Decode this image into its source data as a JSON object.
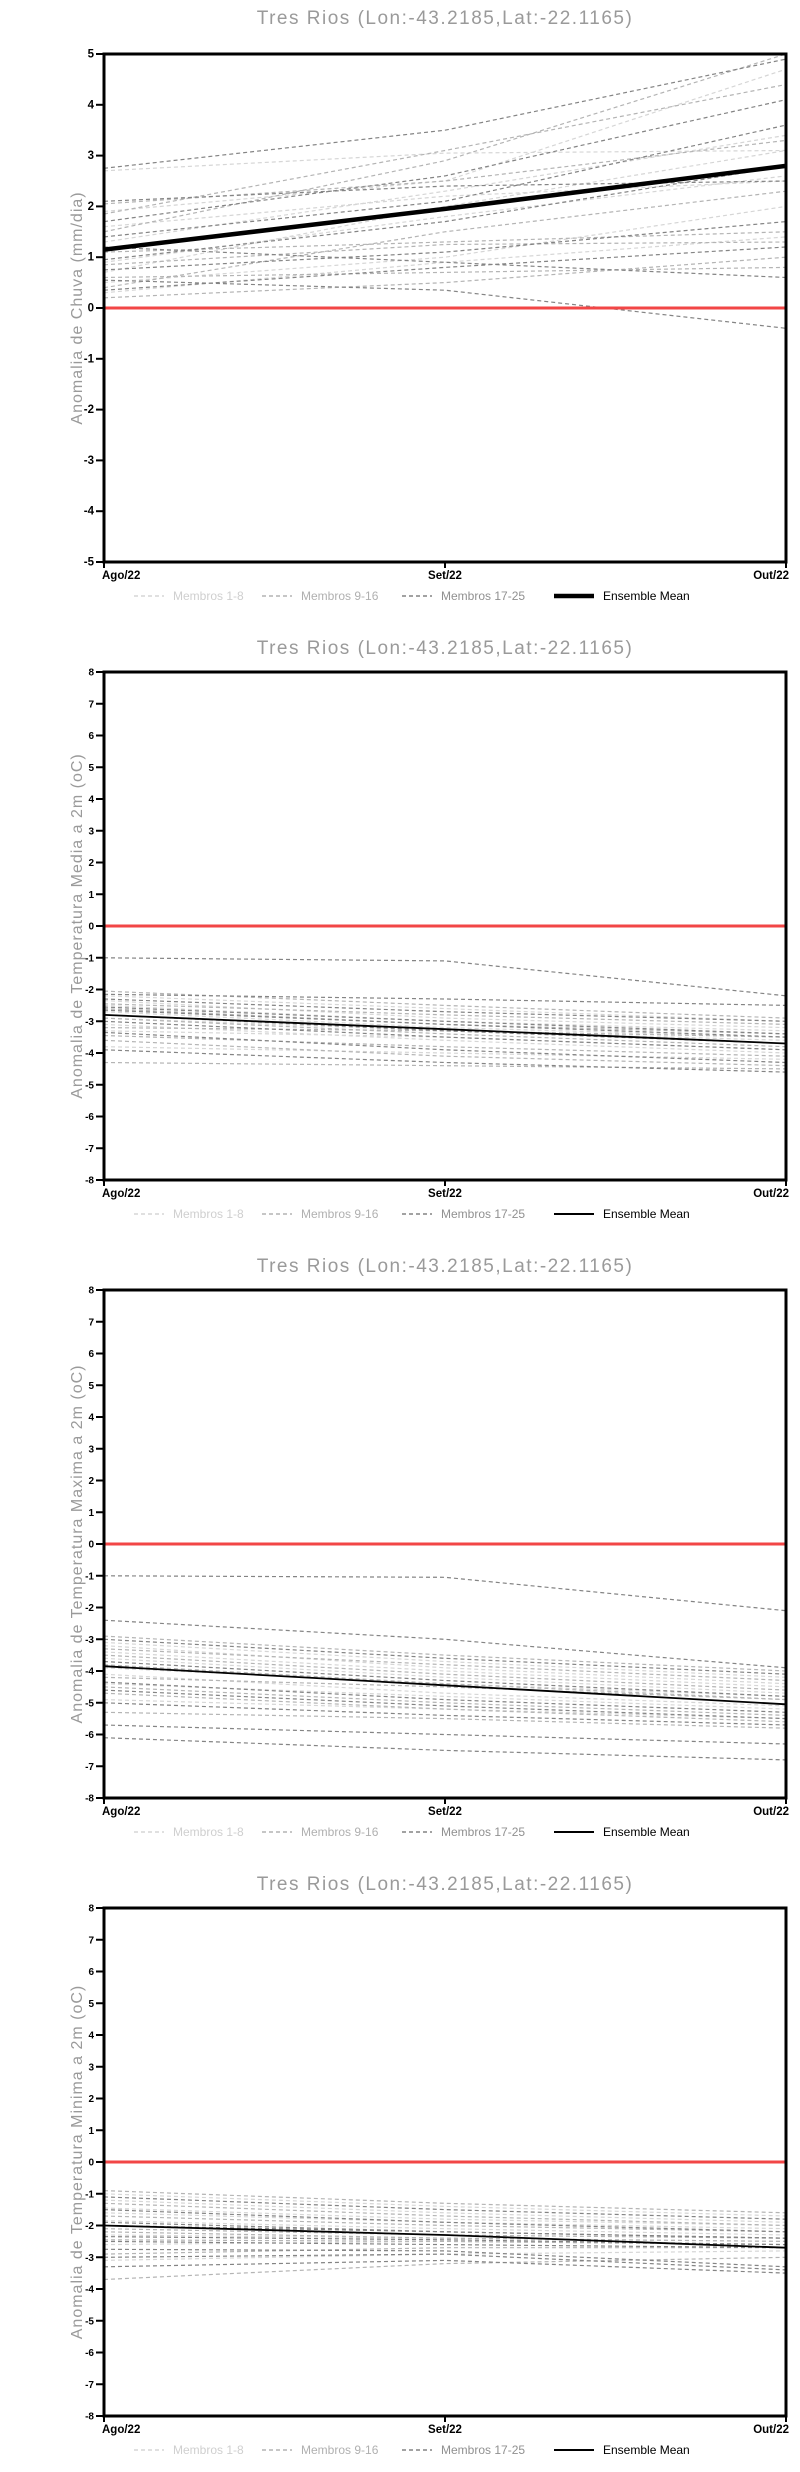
{
  "colors": {
    "background": "#ffffff",
    "axis": "#000000",
    "title_gray": "#9a9a9a",
    "zero_line_red": "#f24646",
    "ensemble_mean": "#000000",
    "members_1_8": "#d6d6d6",
    "members_9_16": "#b4b4b4",
    "members_17_25": "#848484"
  },
  "chart_data": [
    {
      "type": "line",
      "title": "Tres Rios (Lon:-43.2185,Lat:-22.1165)",
      "ylabel": "Anomalia de Chuva (mm/dia)",
      "x_labels": [
        "Ago/22",
        "Set/22",
        "Out/22"
      ],
      "ylim": [
        -5,
        5
      ],
      "ytick_step": 1,
      "zero_line": 0,
      "grid": false,
      "legend_position": "bottom",
      "groups": [
        {
          "name": "Membros 1-8",
          "color": "#d6d6d6",
          "label_color": "#cfcfcf",
          "members": [
            [
              0.9,
              1.8,
              2.6
            ],
            [
              2.7,
              3.05,
              3.1
            ],
            [
              0.5,
              1.0,
              2.0
            ],
            [
              1.3,
              2.3,
              3.4
            ],
            [
              0.3,
              0.9,
              1.4
            ],
            [
              1.9,
              2.5,
              4.7
            ],
            [
              0.7,
              2.0,
              3.1
            ],
            [
              1.6,
              2.2,
              2.5
            ]
          ]
        },
        {
          "name": "Membros 9-16",
          "color": "#b4b4b4",
          "label_color": "#b0b0b0",
          "members": [
            [
              2.05,
              2.5,
              3.3
            ],
            [
              0.85,
              1.25,
              1.3
            ],
            [
              1.5,
              2.9,
              5.0
            ],
            [
              0.4,
              1.5,
              2.3
            ],
            [
              1.1,
              1.3,
              1.5
            ],
            [
              0.6,
              0.7,
              0.8
            ],
            [
              1.85,
              3.1,
              4.4
            ],
            [
              0.2,
              0.5,
              1.0
            ]
          ]
        },
        {
          "name": "Membros 17-25",
          "color": "#848484",
          "label_color": "#909090",
          "members": [
            [
              2.75,
              3.5,
              4.9
            ],
            [
              2.1,
              2.4,
              2.5
            ],
            [
              0.95,
              1.7,
              2.8
            ],
            [
              0.55,
              0.35,
              -0.4
            ],
            [
              1.4,
              2.1,
              3.6
            ],
            [
              0.75,
              1.1,
              1.7
            ],
            [
              1.7,
              2.6,
              4.1
            ],
            [
              0.35,
              0.8,
              1.2
            ],
            [
              1.2,
              0.9,
              0.6
            ]
          ]
        }
      ],
      "ensemble_mean": {
        "name": "Ensemble Mean",
        "color": "#000000",
        "values": [
          1.15,
          1.95,
          2.8
        ],
        "thick": true
      }
    },
    {
      "type": "line",
      "title": "Tres Rios (Lon:-43.2185,Lat:-22.1165)",
      "ylabel": "Anomalia de Temperatura Media a 2m (oC)",
      "x_labels": [
        "Ago/22",
        "Set/22",
        "Out/22"
      ],
      "ylim": [
        -8,
        8
      ],
      "ytick_step": 1,
      "zero_line": 0,
      "grid": false,
      "legend_position": "bottom",
      "groups": [
        {
          "name": "Membros 1-8",
          "color": "#d6d6d6",
          "label_color": "#cfcfcf",
          "members": [
            [
              -2.2,
              -2.6,
              -3.0
            ],
            [
              -2.9,
              -3.3,
              -3.6
            ],
            [
              -3.3,
              -3.5,
              -3.9
            ],
            [
              -2.5,
              -3.0,
              -3.3
            ],
            [
              -3.8,
              -4.0,
              -4.2
            ],
            [
              -2.35,
              -2.9,
              -3.2
            ],
            [
              -3.1,
              -3.6,
              -4.0
            ],
            [
              -2.7,
              -3.2,
              -3.5
            ]
          ]
        },
        {
          "name": "Membros 9-16",
          "color": "#b4b4b4",
          "label_color": "#b0b0b0",
          "members": [
            [
              -2.05,
              -2.5,
              -2.9
            ],
            [
              -3.45,
              -3.8,
              -4.1
            ],
            [
              -2.6,
              -3.1,
              -3.4
            ],
            [
              -4.3,
              -4.4,
              -4.5
            ],
            [
              -2.9,
              -3.4,
              -3.8
            ],
            [
              -3.2,
              -3.3,
              -3.5
            ],
            [
              -2.45,
              -2.8,
              -3.1
            ],
            [
              -3.6,
              -4.1,
              -4.4
            ]
          ]
        },
        {
          "name": "Membros 17-25",
          "color": "#848484",
          "label_color": "#909090",
          "members": [
            [
              -1.0,
              -1.1,
              -2.2
            ],
            [
              -2.15,
              -2.3,
              -2.5
            ],
            [
              -2.8,
              -3.3,
              -3.7
            ],
            [
              -3.9,
              -4.3,
              -4.6
            ],
            [
              -2.55,
              -3.0,
              -3.4
            ],
            [
              -3.0,
              -3.5,
              -3.9
            ],
            [
              -2.3,
              -2.7,
              -3.0
            ],
            [
              -3.35,
              -3.9,
              -4.3
            ],
            [
              -2.65,
              -3.1,
              -3.5
            ]
          ]
        }
      ],
      "ensemble_mean": {
        "name": "Ensemble Mean",
        "color": "#000000",
        "values": [
          -2.8,
          -3.25,
          -3.7
        ],
        "thick": false
      }
    },
    {
      "type": "line",
      "title": "Tres Rios (Lon:-43.2185,Lat:-22.1165)",
      "ylabel": "Anomalia de Temperatura Maxima a 2m (oC)",
      "x_labels": [
        "Ago/22",
        "Set/22",
        "Out/22"
      ],
      "ylim": [
        -8,
        8
      ],
      "ytick_step": 1,
      "zero_line": 0,
      "grid": false,
      "legend_position": "bottom",
      "groups": [
        {
          "name": "Membros 1-8",
          "color": "#d6d6d6",
          "label_color": "#cfcfcf",
          "members": [
            [
              -3.1,
              -3.7,
              -4.2
            ],
            [
              -3.9,
              -4.4,
              -4.8
            ],
            [
              -4.4,
              -4.8,
              -5.2
            ],
            [
              -3.4,
              -4.0,
              -4.5
            ],
            [
              -4.9,
              -5.2,
              -5.5
            ],
            [
              -3.2,
              -3.9,
              -4.4
            ],
            [
              -4.1,
              -4.7,
              -5.1
            ],
            [
              -3.6,
              -4.2,
              -4.7
            ]
          ]
        },
        {
          "name": "Membros 9-16",
          "color": "#b4b4b4",
          "label_color": "#b0b0b0",
          "members": [
            [
              -2.9,
              -3.5,
              -4.0
            ],
            [
              -4.5,
              -5.0,
              -5.4
            ],
            [
              -3.5,
              -4.1,
              -4.6
            ],
            [
              -5.3,
              -5.5,
              -5.8
            ],
            [
              -3.8,
              -4.4,
              -4.9
            ],
            [
              -4.2,
              -4.5,
              -4.9
            ],
            [
              -3.3,
              -3.8,
              -4.3
            ],
            [
              -4.7,
              -5.2,
              -5.6
            ]
          ]
        },
        {
          "name": "Membros 17-25",
          "color": "#848484",
          "label_color": "#909090",
          "members": [
            [
              -1.0,
              -1.05,
              -2.1
            ],
            [
              -2.4,
              -3.0,
              -3.9
            ],
            [
              -3.0,
              -3.6,
              -4.1
            ],
            [
              -5.7,
              -6.0,
              -6.3
            ],
            [
              -6.1,
              -6.5,
              -6.8
            ],
            [
              -3.7,
              -4.3,
              -4.8
            ],
            [
              -4.35,
              -4.9,
              -5.3
            ],
            [
              -5.0,
              -5.4,
              -5.7
            ],
            [
              -4.6,
              -5.1,
              -5.5
            ]
          ]
        }
      ],
      "ensemble_mean": {
        "name": "Ensemble Mean",
        "color": "#000000",
        "values": [
          -3.85,
          -4.45,
          -5.05
        ],
        "thick": false
      }
    },
    {
      "type": "line",
      "title": "Tres Rios (Lon:-43.2185,Lat:-22.1165)",
      "ylabel": "Anomalia de Temperatura Minima a 2m (oC)",
      "x_labels": [
        "Ago/22",
        "Set/22",
        "Out/22"
      ],
      "ylim": [
        -8,
        8
      ],
      "ytick_step": 1,
      "zero_line": 0,
      "grid": false,
      "legend_position": "bottom",
      "groups": [
        {
          "name": "Membros 1-8",
          "color": "#d6d6d6",
          "label_color": "#cfcfcf",
          "members": [
            [
              -1.0,
              -1.4,
              -1.7
            ],
            [
              -1.6,
              -1.9,
              -2.1
            ],
            [
              -2.3,
              -2.4,
              -2.5
            ],
            [
              -1.2,
              -1.6,
              -1.9
            ],
            [
              -3.1,
              -2.9,
              -2.8
            ],
            [
              -1.45,
              -1.8,
              -2.0
            ],
            [
              -2.6,
              -2.5,
              -2.6
            ],
            [
              -1.85,
              -2.1,
              -2.3
            ]
          ]
        },
        {
          "name": "Membros 9-16",
          "color": "#b4b4b4",
          "label_color": "#b0b0b0",
          "members": [
            [
              -0.9,
              -1.3,
              -1.6
            ],
            [
              -2.45,
              -2.5,
              -2.6
            ],
            [
              -1.7,
              -2.0,
              -2.2
            ],
            [
              -3.7,
              -3.2,
              -3.0
            ],
            [
              -2.1,
              -2.3,
              -2.4
            ],
            [
              -2.9,
              -2.7,
              -2.7
            ],
            [
              -1.3,
              -1.7,
              -2.0
            ],
            [
              -2.2,
              -2.4,
              -2.5
            ]
          ]
        },
        {
          "name": "Membros 17-25",
          "color": "#848484",
          "label_color": "#909090",
          "members": [
            [
              -1.1,
              -1.5,
              -1.8
            ],
            [
              -1.9,
              -2.2,
              -2.4
            ],
            [
              -2.5,
              -2.6,
              -2.7
            ],
            [
              -3.3,
              -3.1,
              -3.5
            ],
            [
              -1.5,
              -1.9,
              -2.2
            ],
            [
              -2.75,
              -2.8,
              -3.3
            ],
            [
              -2.0,
              -2.2,
              -2.4
            ],
            [
              -3.0,
              -2.9,
              -3.4
            ],
            [
              -2.35,
              -2.45,
              -2.6
            ]
          ]
        }
      ],
      "ensemble_mean": {
        "name": "Ensemble Mean",
        "color": "#000000",
        "values": [
          -2.0,
          -2.3,
          -2.7
        ],
        "thick": false
      }
    }
  ]
}
